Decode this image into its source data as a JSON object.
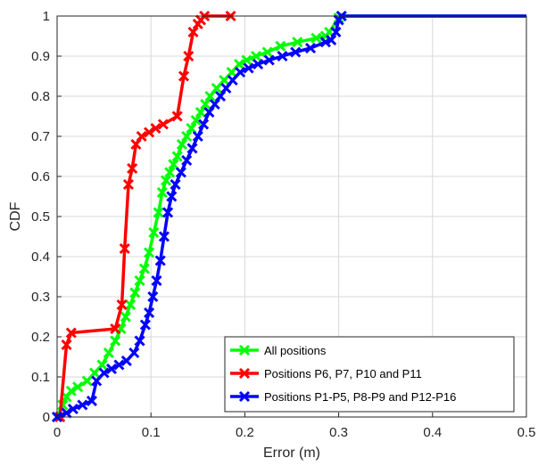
{
  "chart_data": {
    "type": "line",
    "title": "",
    "xlabel": "Error (m)",
    "ylabel": "CDF",
    "xlim": [
      0,
      0.5
    ],
    "ylim": [
      0,
      1
    ],
    "xticks": [
      "0",
      "0.1",
      "0.2",
      "0.3",
      "0.4",
      "0.5"
    ],
    "yticks": [
      "0",
      "0.1",
      "0.2",
      "0.3",
      "0.4",
      "0.5",
      "0.6",
      "0.7",
      "0.8",
      "0.9",
      "1"
    ],
    "grid": true,
    "legend_position": "bottom-right",
    "series": [
      {
        "name": "All positions",
        "color": "#00ff00",
        "marker": "x",
        "x": [
          0.0,
          0.006,
          0.01,
          0.015,
          0.022,
          0.032,
          0.04,
          0.048,
          0.055,
          0.062,
          0.068,
          0.073,
          0.078,
          0.083,
          0.088,
          0.093,
          0.098,
          0.103,
          0.108,
          0.112,
          0.116,
          0.12,
          0.124,
          0.128,
          0.133,
          0.138,
          0.143,
          0.148,
          0.153,
          0.158,
          0.163,
          0.17,
          0.178,
          0.186,
          0.194,
          0.202,
          0.212,
          0.224,
          0.238,
          0.256,
          0.276,
          0.286,
          0.29,
          0.3,
          0.303,
          0.5
        ],
        "y": [
          0.0,
          0.03,
          0.05,
          0.065,
          0.075,
          0.09,
          0.11,
          0.13,
          0.16,
          0.19,
          0.22,
          0.25,
          0.28,
          0.31,
          0.34,
          0.37,
          0.41,
          0.46,
          0.51,
          0.56,
          0.59,
          0.61,
          0.63,
          0.65,
          0.68,
          0.7,
          0.72,
          0.74,
          0.76,
          0.78,
          0.8,
          0.82,
          0.84,
          0.86,
          0.88,
          0.89,
          0.9,
          0.91,
          0.925,
          0.935,
          0.945,
          0.95,
          0.96,
          0.995,
          1.0,
          1.0
        ]
      },
      {
        "name": "Positions P6, P7, P10 and P11",
        "color": "#ff0000",
        "marker": "x",
        "x": [
          0.003,
          0.01,
          0.015,
          0.062,
          0.069,
          0.072,
          0.076,
          0.08,
          0.084,
          0.09,
          0.098,
          0.105,
          0.113,
          0.128,
          0.135,
          0.14,
          0.145,
          0.15,
          0.153,
          0.157,
          0.185
        ],
        "y": [
          0.0,
          0.18,
          0.21,
          0.22,
          0.28,
          0.42,
          0.58,
          0.62,
          0.68,
          0.7,
          0.71,
          0.72,
          0.73,
          0.75,
          0.85,
          0.9,
          0.96,
          0.98,
          0.99,
          1.0,
          1.0
        ]
      },
      {
        "name": "Positions P1-P5, P8-P9 and P12-P16",
        "color": "#0000ff",
        "marker": "x",
        "x": [
          0.0,
          0.01,
          0.017,
          0.027,
          0.037,
          0.042,
          0.05,
          0.058,
          0.066,
          0.074,
          0.082,
          0.088,
          0.094,
          0.098,
          0.102,
          0.106,
          0.11,
          0.114,
          0.118,
          0.122,
          0.126,
          0.132,
          0.138,
          0.144,
          0.15,
          0.156,
          0.162,
          0.168,
          0.174,
          0.18,
          0.187,
          0.195,
          0.204,
          0.214,
          0.226,
          0.24,
          0.254,
          0.27,
          0.286,
          0.292,
          0.297,
          0.3,
          0.303,
          0.5
        ],
        "y": [
          0.0,
          0.01,
          0.02,
          0.03,
          0.04,
          0.09,
          0.11,
          0.12,
          0.13,
          0.14,
          0.16,
          0.19,
          0.23,
          0.26,
          0.3,
          0.34,
          0.39,
          0.45,
          0.51,
          0.55,
          0.58,
          0.61,
          0.64,
          0.67,
          0.7,
          0.73,
          0.76,
          0.78,
          0.8,
          0.82,
          0.84,
          0.86,
          0.87,
          0.88,
          0.89,
          0.9,
          0.91,
          0.92,
          0.935,
          0.94,
          0.96,
          0.99,
          1.0,
          1.0
        ]
      }
    ]
  }
}
